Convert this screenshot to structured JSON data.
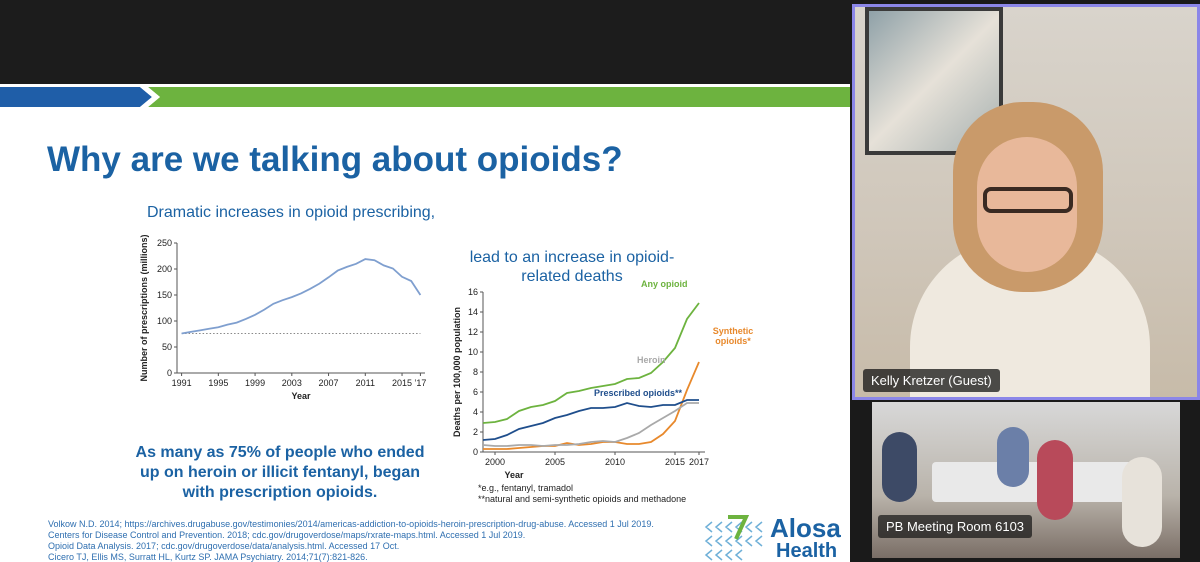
{
  "slide": {
    "title": "Why are we talking about opioids?",
    "subtitle": "Dramatic increases in opioid prescribing,",
    "charts": [
      {
        "type": "line",
        "ylabel": "Number of prescriptions (millions)",
        "xlabel": "Year",
        "x": [
          1991,
          1992,
          1993,
          1994,
          1995,
          1996,
          1997,
          1998,
          1999,
          2000,
          2001,
          2002,
          2003,
          2004,
          2005,
          2006,
          2007,
          2008,
          2009,
          2010,
          2011,
          2012,
          2013,
          2014,
          2015,
          2016,
          2017
        ],
        "values": [
          76,
          79,
          82,
          85,
          88,
          93,
          97,
          104,
          112,
          122,
          133,
          140,
          146,
          153,
          162,
          172,
          184,
          197,
          204,
          210,
          219,
          217,
          207,
          201,
          185,
          177,
          150
        ],
        "color": "#7f9fcf",
        "baseline": 76,
        "xlim": [
          1990.5,
          2017.5
        ],
        "ylim": [
          0,
          250
        ],
        "xticks": [
          1991,
          1995,
          1999,
          2003,
          2007,
          2011,
          2015,
          {
            "value": 2017,
            "label": "’17"
          }
        ],
        "yticks": [
          0,
          50,
          100,
          150,
          200,
          250
        ]
      },
      {
        "type": "line",
        "heading": "lead to an increase in opioid-related deaths",
        "ylabel": "Deaths per 100,000 population",
        "xlabel": "Year",
        "x": [
          1999,
          2000,
          2001,
          2002,
          2003,
          2004,
          2005,
          2006,
          2007,
          2008,
          2009,
          2010,
          2011,
          2012,
          2013,
          2014,
          2015,
          2016,
          2017
        ],
        "series": [
          {
            "name": "Any opioid",
            "color": "#6db33f",
            "values": [
              2.9,
              3.0,
              3.3,
              4.1,
              4.5,
              4.7,
              5.1,
              5.9,
              6.1,
              6.4,
              6.6,
              6.8,
              7.3,
              7.4,
              7.9,
              9.0,
              10.4,
              13.3,
              14.9
            ]
          },
          {
            "name": "Synthetic opioids*",
            "color": "#e8892c",
            "values": [
              0.3,
              0.3,
              0.3,
              0.4,
              0.5,
              0.6,
              0.6,
              0.9,
              0.7,
              0.8,
              1.0,
              1.0,
              0.8,
              0.8,
              1.0,
              1.8,
              3.1,
              6.2,
              9.0
            ]
          },
          {
            "name": "Prescribed opioids**",
            "color": "#1f4e8c",
            "values": [
              1.2,
              1.3,
              1.7,
              2.3,
              2.6,
              2.9,
              3.4,
              3.7,
              4.1,
              4.4,
              4.4,
              4.5,
              4.9,
              4.6,
              4.5,
              4.7,
              4.7,
              5.2,
              5.2
            ]
          },
          {
            "name": "Heroin",
            "color": "#a9a9a9",
            "values": [
              0.7,
              0.6,
              0.6,
              0.7,
              0.7,
              0.6,
              0.7,
              0.7,
              0.8,
              1.0,
              1.1,
              1.0,
              1.4,
              1.9,
              2.7,
              3.4,
              4.1,
              4.9,
              4.9
            ]
          }
        ],
        "xlim": [
          1999,
          2017.5
        ],
        "ylim": [
          0,
          16
        ],
        "xticks": [
          2000,
          2005,
          2010,
          2015,
          2017
        ],
        "yticks": [
          0,
          2,
          4,
          6,
          8,
          10,
          12,
          14,
          16
        ],
        "footnotes": [
          "*e.g., fentanyl, tramadol",
          "**natural and semi-synthetic opioids and methadone"
        ]
      }
    ],
    "quote": "As many as 75% of people who ended up on heroin or illicit fentanyl, began with prescription opioids.",
    "references": [
      "Volkow N.D. 2014; https://archives.drugabuse.gov/testimonies/2014/americas-addiction-to-opioids-heroin-prescription-drug-abuse. Accessed 1 Jul 2019.",
      "Centers for Disease Control and Prevention. 2018; cdc.gov/drugoverdose/maps/rxrate-maps.html. Accessed 1 Jul 2019.",
      "Opioid Data Analysis. 2017; cdc.gov/drugoverdose/data/analysis.html. Accessed 17 Oct.",
      "Cicero TJ, Ellis MS, Surratt HL, Kurtz SP. JAMA Psychiatry. 2014;71(7):821-826."
    ],
    "logo": {
      "name": "Alosa",
      "sub": "Health"
    }
  },
  "participants": [
    {
      "name": "Kelly Kretzer (Guest)"
    },
    {
      "name": "PB Meeting Room 6103"
    }
  ]
}
